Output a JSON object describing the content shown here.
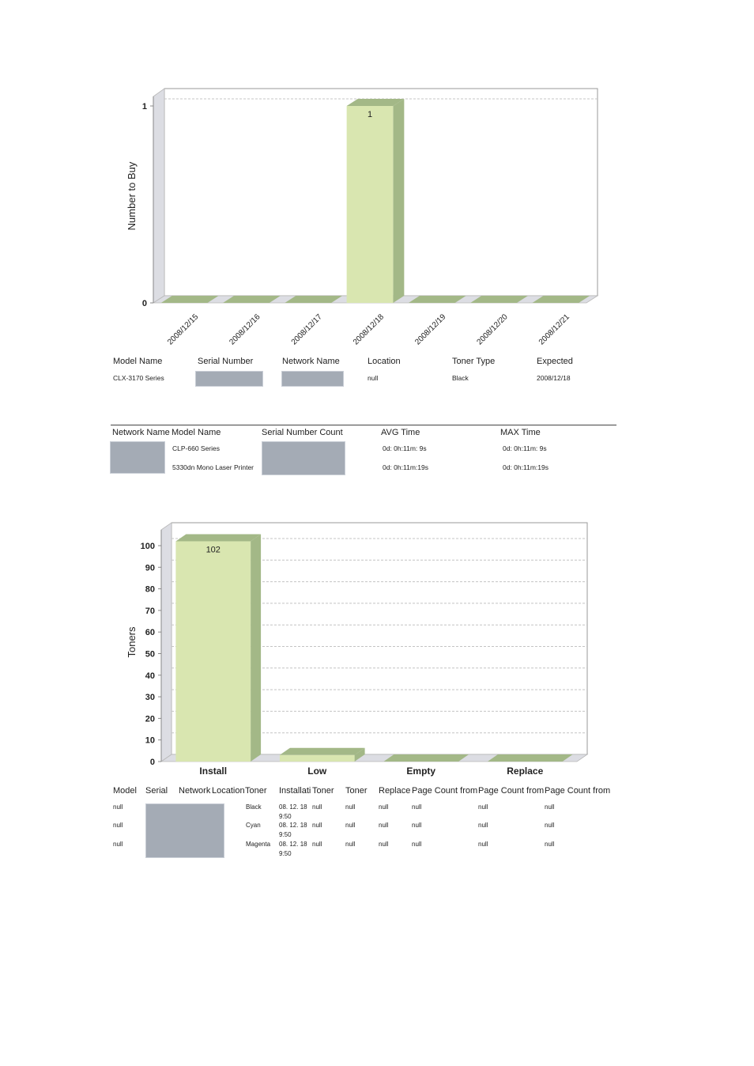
{
  "chart_data": [
    {
      "type": "bar",
      "ylabel": "Number to Buy",
      "categories": [
        "2008/12/15",
        "2008/12/16",
        "2008/12/17",
        "2008/12/18",
        "2008/12/19",
        "2008/12/20",
        "2008/12/21"
      ],
      "values": [
        0,
        0,
        0,
        1,
        0,
        0,
        0
      ],
      "y_ticks": [
        "1",
        "0"
      ],
      "ylim": [
        0,
        1
      ],
      "data_labels": [
        "",
        "",
        "",
        "1",
        "",
        "",
        ""
      ],
      "grid": true,
      "bar_color": "#d9e6b0",
      "bar_side_color": "#a3b887"
    },
    {
      "type": "bar",
      "ylabel": "Toners",
      "categories": [
        "Install",
        "Low",
        "Empty",
        "Replace"
      ],
      "values": [
        102,
        3,
        0,
        0
      ],
      "y_ticks": [
        "100",
        "90",
        "80",
        "70",
        "60",
        "50",
        "40",
        "30",
        "20",
        "10",
        "0"
      ],
      "ylim": [
        0,
        100
      ],
      "data_labels": [
        "102",
        "",
        "",
        ""
      ],
      "grid": true,
      "bar_color": "#d9e6b0",
      "bar_side_color": "#a3b887"
    }
  ],
  "table1": {
    "headers": [
      "Model Name",
      "Serial Number",
      "Network Name",
      "Location",
      "Toner Type",
      "Expected"
    ],
    "row": {
      "model": "CLX-3170 Series",
      "location": "null",
      "toner_type": "Black",
      "expected": "2008/12/18"
    }
  },
  "table2": {
    "headers": [
      "Network Name",
      "Model Name",
      "Serial Number Count",
      "AVG Time",
      "MAX Time"
    ],
    "rows": [
      {
        "model": "CLP-660 Series",
        "avg": "0d: 0h:11m: 9s",
        "max": "0d: 0h:11m: 9s"
      },
      {
        "model": "5330dn Mono Laser Printer",
        "avg": "0d: 0h:11m:19s",
        "max": "0d: 0h:11m:19s"
      }
    ]
  },
  "table3": {
    "headers": [
      "Model",
      "Serial",
      "Network",
      "Location",
      "Toner",
      "Installati",
      "Toner",
      "Toner",
      "Replace",
      "Page Count from",
      "Page Count from",
      "Page Count from"
    ],
    "rows": [
      {
        "model": "null",
        "toner": "Black",
        "install_date": "08. 12. 18",
        "install_time": "9:50",
        "c1": "null",
        "c2": "null",
        "c3": "null",
        "c4": "null",
        "c5": "null",
        "c6": "null"
      },
      {
        "model": "null",
        "toner": "Cyan",
        "install_date": "08. 12. 18",
        "install_time": "9:50",
        "c1": "null",
        "c2": "null",
        "c3": "null",
        "c4": "null",
        "c5": "null",
        "c6": "null"
      },
      {
        "model": "null",
        "toner": "Magenta",
        "install_date": "08. 12. 18",
        "install_time": "9:50",
        "c1": "null",
        "c2": "null",
        "c3": "null",
        "c4": "null",
        "c5": "null",
        "c6": "null"
      }
    ]
  }
}
